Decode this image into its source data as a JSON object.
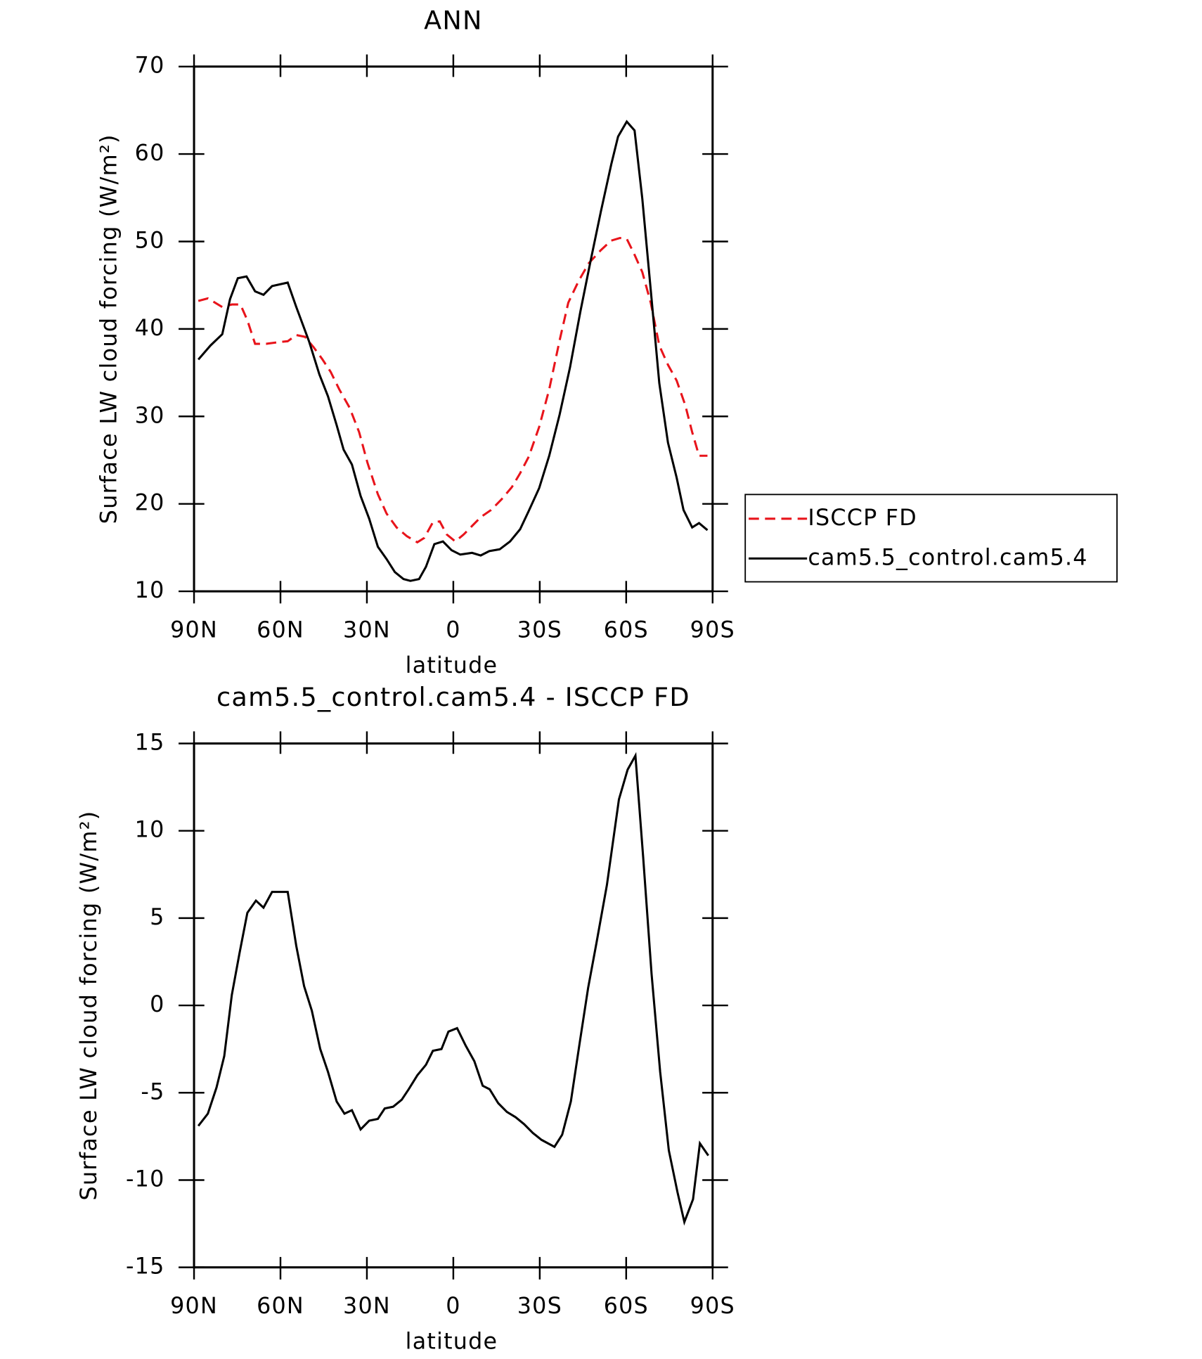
{
  "chart_data": [
    {
      "type": "line",
      "title": "ANN",
      "xlabel": "latitude",
      "ylabel": "Surface LW cloud forcing (W/m²)",
      "xlim": [
        90,
        -90
      ],
      "xticks": [
        {
          "value": 90,
          "label": "90N"
        },
        {
          "value": 60,
          "label": "60N"
        },
        {
          "value": 30,
          "label": "30N"
        },
        0,
        {
          "value": -30,
          "label": "30S"
        },
        {
          "value": -60,
          "label": "60S"
        },
        {
          "value": -90,
          "label": "90S"
        }
      ],
      "ylim": [
        10,
        70
      ],
      "yticks": [
        10,
        20,
        30,
        40,
        50,
        60,
        70
      ],
      "legend": "right",
      "series": [
        {
          "name": "ISCCP FD",
          "color": "#e8141b",
          "linestyle": "dashed",
          "x": [
            88.5,
            85.2,
            80.2,
            76.9,
            73.9,
            71.5,
            68.8,
            65.0,
            60.5,
            57.5,
            54.5,
            51.5,
            48.5,
            45.6,
            42.6,
            39.6,
            36.0,
            32.7,
            29.8,
            26.2,
            23.2,
            19.7,
            16.1,
            12.5,
            10.1,
            7.1,
            4.7,
            2.3,
            -0.7,
            -3.6,
            -6.6,
            -9.6,
            -13.1,
            -16.7,
            -20.3,
            -23.2,
            -26.2,
            -29.8,
            -33.3,
            -36.9,
            -39.9,
            -43.5,
            -47.0,
            -51.2,
            -54.8,
            -57.8,
            -60.2,
            -62.6,
            -65.6,
            -68.5,
            -71.5,
            -74.5,
            -77.5,
            -80.5,
            -82.9,
            -85.3,
            -88.2
          ],
          "values": [
            43.2,
            43.5,
            42.5,
            42.8,
            42.8,
            41.0,
            38.3,
            38.3,
            38.5,
            38.6,
            39.3,
            39.1,
            37.9,
            36.6,
            35.1,
            33.1,
            31.0,
            28.2,
            24.7,
            21.1,
            18.9,
            17.3,
            16.3,
            15.6,
            16.1,
            17.9,
            18.0,
            16.5,
            15.7,
            16.5,
            17.5,
            18.5,
            19.3,
            20.5,
            21.9,
            23.5,
            25.4,
            28.8,
            33.1,
            38.7,
            43.0,
            45.5,
            47.5,
            49.0,
            50.1,
            50.4,
            50.3,
            48.7,
            46.5,
            43.0,
            38.1,
            35.9,
            34.1,
            31.3,
            28.2,
            25.5,
            25.5
          ]
        },
        {
          "name": "cam5.5_control.cam5.4",
          "color": "#000000",
          "linestyle": "solid",
          "x": [
            88.5,
            84.3,
            80.2,
            77.5,
            74.8,
            71.8,
            68.8,
            65.9,
            62.9,
            57.5,
            54.5,
            50.1,
            46.5,
            43.5,
            40.5,
            38.1,
            35.2,
            32.2,
            29.2,
            26.2,
            23.2,
            20.3,
            17.3,
            14.9,
            11.9,
            9.5,
            6.6,
            3.6,
            0.6,
            -2.4,
            -6.5,
            -9.5,
            -12.5,
            -16.1,
            -19.7,
            -23.2,
            -26.2,
            -29.8,
            -33.3,
            -36.9,
            -40.5,
            -44.1,
            -47.6,
            -51.2,
            -54.8,
            -57.2,
            -60.2,
            -62.9,
            -65.6,
            -68.5,
            -71.5,
            -74.5,
            -77.5,
            -79.9,
            -82.9,
            -85.3,
            -88.2
          ],
          "values": [
            36.5,
            38.1,
            39.4,
            43.4,
            45.8,
            46.0,
            44.3,
            43.9,
            44.9,
            45.3,
            42.5,
            38.6,
            34.8,
            32.3,
            29.0,
            26.2,
            24.5,
            20.9,
            18.3,
            15.1,
            13.7,
            12.2,
            11.4,
            11.2,
            11.4,
            12.8,
            15.4,
            15.7,
            14.7,
            14.2,
            14.4,
            14.1,
            14.6,
            14.8,
            15.7,
            17.1,
            19.2,
            21.8,
            25.5,
            30.2,
            35.6,
            42.0,
            47.7,
            53.4,
            58.8,
            62.0,
            63.7,
            62.7,
            54.9,
            44.5,
            33.8,
            27.0,
            23.0,
            19.3,
            17.3,
            17.8,
            17.0
          ]
        }
      ]
    },
    {
      "type": "line",
      "title": "cam5.5_control.cam5.4 - ISCCP FD",
      "xlabel": "latitude",
      "ylabel": "Surface LW cloud forcing (W/m²)",
      "xlim": [
        90,
        -90
      ],
      "xticks": [
        {
          "value": 90,
          "label": "90N"
        },
        {
          "value": 60,
          "label": "60N"
        },
        {
          "value": 30,
          "label": "30N"
        },
        0,
        {
          "value": -30,
          "label": "30S"
        },
        {
          "value": -60,
          "label": "60S"
        },
        {
          "value": -90,
          "label": "90S"
        }
      ],
      "ylim": [
        -15,
        15
      ],
      "yticks": [
        -15,
        -10,
        -5,
        0,
        5,
        10,
        15
      ],
      "series": [
        {
          "color": "#000000",
          "linestyle": "solid",
          "x": [
            88.5,
            85.2,
            82.2,
            79.5,
            76.9,
            74.2,
            71.5,
            68.5,
            65.9,
            62.9,
            57.5,
            54.5,
            51.8,
            49.1,
            46.2,
            43.5,
            40.5,
            37.8,
            35.2,
            32.2,
            29.2,
            26.2,
            23.8,
            20.9,
            17.9,
            15.5,
            12.5,
            9.5,
            7.1,
            4.1,
            1.7,
            -1.3,
            -4.3,
            -7.3,
            -10.2,
            -12.6,
            -15.6,
            -18.6,
            -21.6,
            -24.6,
            -27.6,
            -30.6,
            -35.1,
            -37.8,
            -40.8,
            -43.8,
            -46.8,
            -49.7,
            -53.3,
            -57.5,
            -60.5,
            -63.2,
            -65.9,
            -68.8,
            -71.8,
            -74.8,
            -77.8,
            -80.2,
            -83.2,
            -85.6,
            -88.5
          ],
          "values": [
            -6.9,
            -6.2,
            -4.7,
            -2.9,
            0.6,
            3.0,
            5.3,
            6.0,
            5.6,
            6.5,
            6.5,
            3.4,
            1.1,
            -0.3,
            -2.5,
            -3.8,
            -5.5,
            -6.2,
            -6.0,
            -7.1,
            -6.6,
            -6.5,
            -5.9,
            -5.8,
            -5.4,
            -4.8,
            -4.0,
            -3.4,
            -2.6,
            -2.5,
            -1.5,
            -1.3,
            -2.3,
            -3.2,
            -4.6,
            -4.8,
            -5.6,
            -6.1,
            -6.4,
            -6.8,
            -7.3,
            -7.7,
            -8.1,
            -7.4,
            -5.5,
            -2.2,
            1.0,
            3.6,
            6.9,
            11.8,
            13.5,
            14.3,
            8.5,
            1.8,
            -3.8,
            -8.3,
            -10.7,
            -12.4,
            -11.1,
            -7.9,
            -8.6
          ]
        }
      ]
    }
  ]
}
